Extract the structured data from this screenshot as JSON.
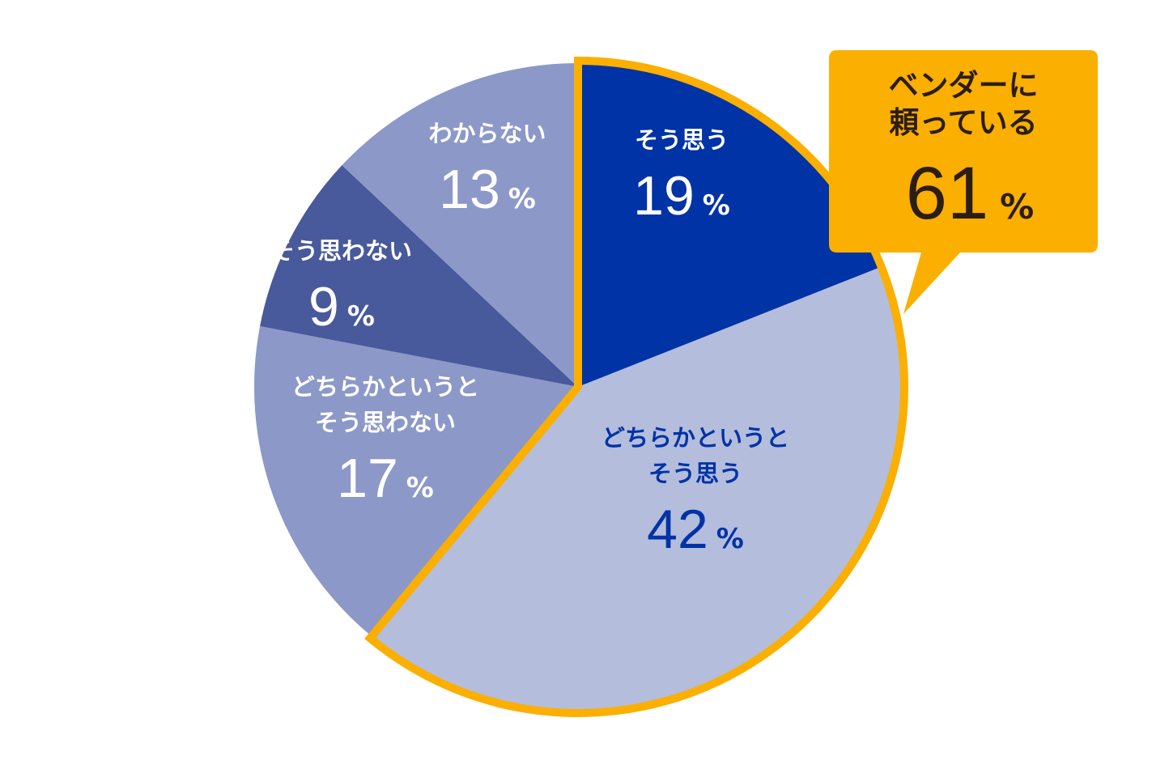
{
  "chart_data": {
    "type": "pie",
    "slices": [
      {
        "label_lines": [
          "そう思う"
        ],
        "value": 19,
        "unit": "%",
        "color": "#0033a6",
        "text_color": "#ffffff"
      },
      {
        "label_lines": [
          "どちらかというと",
          "そう思う"
        ],
        "value": 42,
        "unit": "%",
        "color": "#b4bddc",
        "text_color": "#0033a6"
      },
      {
        "label_lines": [
          "どちらかというと",
          "そう思わない"
        ],
        "value": 17,
        "unit": "%",
        "color": "#8c98c8",
        "text_color": "#ffffff"
      },
      {
        "label_lines": [
          "そう思わない"
        ],
        "value": 9,
        "unit": "%",
        "color": "#48599c",
        "text_color": "#ffffff"
      },
      {
        "label_lines": [
          "わからない"
        ],
        "value": 13,
        "unit": "%",
        "color": "#8c98c8",
        "text_color": "#ffffff"
      }
    ],
    "highlight": {
      "slices": [
        0,
        1
      ],
      "label_lines": [
        "ベンダーに",
        "頼っている"
      ],
      "value": 61,
      "unit": "%",
      "color": "#fbaf00"
    }
  }
}
